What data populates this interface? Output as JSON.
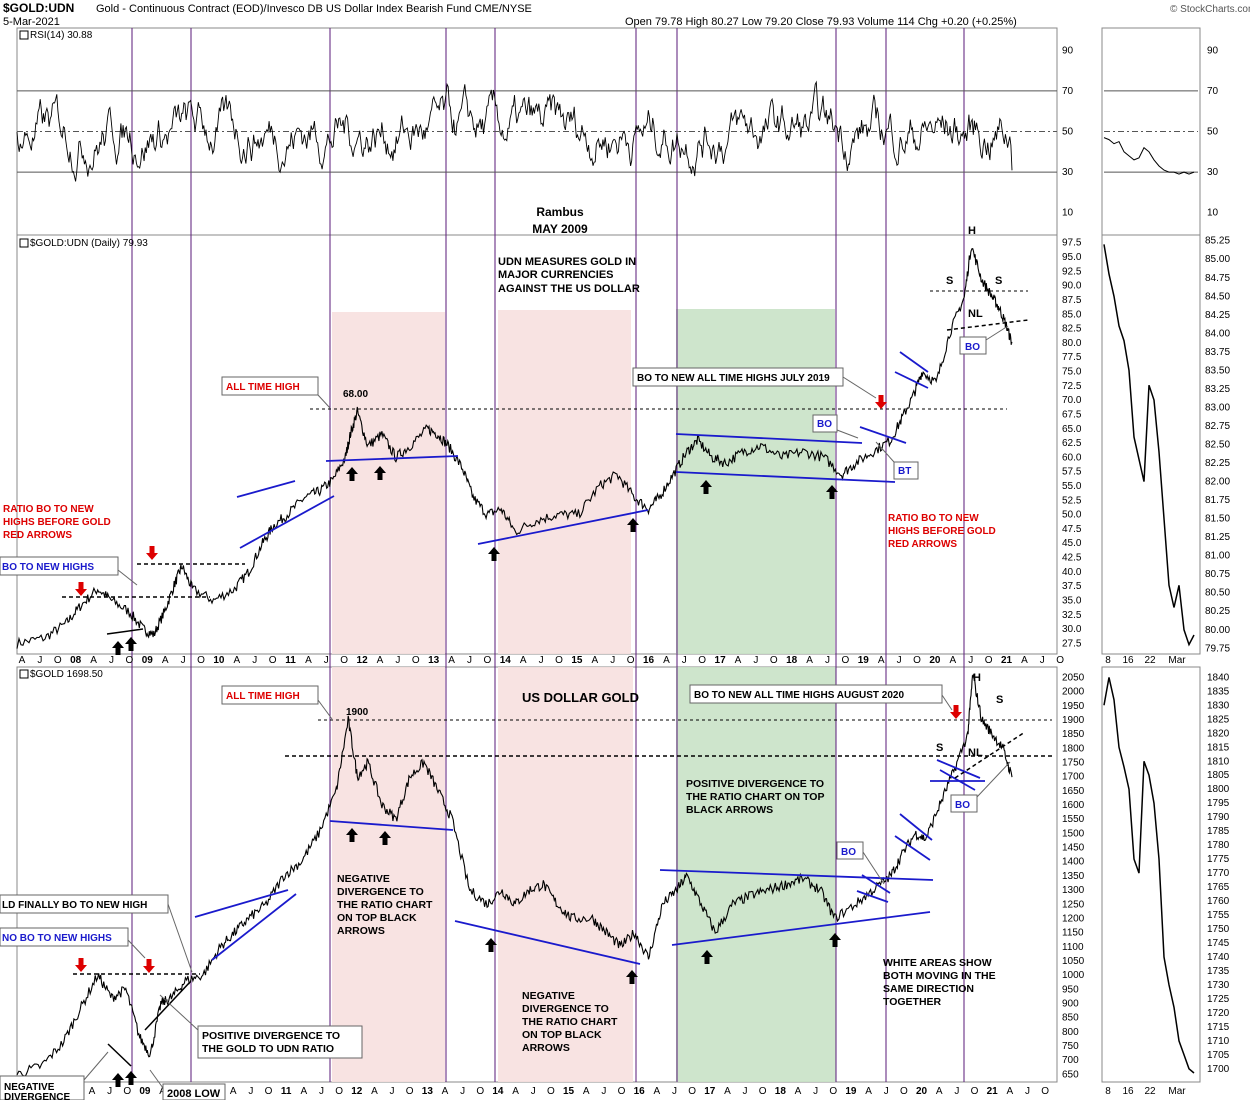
{
  "header": {
    "symbol": "$GOLD:UDN",
    "description": "Gold - Continuous Contract (EOD)/Invesco DB US Dollar Index Bearish Fund  CME/NYSE",
    "date": "5-Mar-2021",
    "quote": "Open 79.78  High 80.27  Low 79.20  Close 79.93  Volume 114  Chg +0.20 (+0.25%)",
    "watermark": "© StockCharts.com"
  },
  "colors": {
    "pink_zone": "#f7e0df",
    "green_zone": "#c9e2c6",
    "trendline": "#1a1acc",
    "cycle_line": "#5a1a7a",
    "red_text": "#dd0000",
    "blue_text": "#1a1acc"
  },
  "credits": {
    "author": "Rambus",
    "date": "MAY 2009"
  },
  "chart_data": [
    {
      "type": "line",
      "name": "rsi",
      "legend": "RSI(14) 30.88",
      "ylim": [
        0,
        100
      ],
      "yticks": [
        10,
        30,
        50,
        70,
        90
      ],
      "reference_lines": [
        30,
        50,
        70
      ]
    },
    {
      "type": "line",
      "name": "ratio",
      "legend": "$GOLD:UDN (Daily) 79.93",
      "ylim": [
        26,
        98.5
      ],
      "yticks": [
        27.5,
        30.0,
        32.5,
        35.0,
        37.5,
        40.0,
        42.5,
        45.0,
        47.5,
        50.0,
        52.5,
        55.0,
        57.5,
        60.0,
        62.5,
        65.0,
        67.5,
        70.0,
        72.5,
        75.0,
        77.5,
        80.0,
        82.5,
        85.0,
        87.5,
        90.0,
        92.5,
        95.0,
        97.5
      ],
      "x_start": 2007.0,
      "x_end": 2021.18,
      "points": [
        [
          2007.0,
          27.5
        ],
        [
          2007.4,
          28.5
        ],
        [
          2007.7,
          31
        ],
        [
          2007.9,
          34
        ],
        [
          2008.15,
          37
        ],
        [
          2008.35,
          35
        ],
        [
          2008.6,
          33
        ],
        [
          2008.8,
          30
        ],
        [
          2008.95,
          29
        ],
        [
          2009.1,
          33
        ],
        [
          2009.25,
          38
        ],
        [
          2009.35,
          41
        ],
        [
          2009.5,
          37
        ],
        [
          2009.8,
          35
        ],
        [
          2010.1,
          37
        ],
        [
          2010.3,
          40
        ],
        [
          2010.5,
          45
        ],
        [
          2010.65,
          48
        ],
        [
          2010.85,
          50
        ],
        [
          2011.1,
          53
        ],
        [
          2011.3,
          54
        ],
        [
          2011.5,
          56
        ],
        [
          2011.68,
          60
        ],
        [
          2011.75,
          64
        ],
        [
          2011.85,
          68
        ],
        [
          2012.0,
          62
        ],
        [
          2012.2,
          64
        ],
        [
          2012.4,
          60
        ],
        [
          2012.6,
          62
        ],
        [
          2012.85,
          65
        ],
        [
          2013.0,
          64
        ],
        [
          2013.15,
          62
        ],
        [
          2013.35,
          58
        ],
        [
          2013.5,
          53
        ],
        [
          2013.7,
          50
        ],
        [
          2013.9,
          51
        ],
        [
          2014.1,
          47
        ],
        [
          2014.4,
          49
        ],
        [
          2014.7,
          50
        ],
        [
          2015.0,
          50
        ],
        [
          2015.3,
          55
        ],
        [
          2015.55,
          57
        ],
        [
          2015.8,
          53
        ],
        [
          2016.0,
          51
        ],
        [
          2016.15,
          53
        ],
        [
          2016.35,
          57
        ],
        [
          2016.55,
          61
        ],
        [
          2016.7,
          63
        ],
        [
          2016.9,
          60
        ],
        [
          2017.1,
          59
        ],
        [
          2017.35,
          61
        ],
        [
          2017.6,
          62
        ],
        [
          2017.9,
          60
        ],
        [
          2018.2,
          61
        ],
        [
          2018.5,
          60
        ],
        [
          2018.75,
          57
        ],
        [
          2018.95,
          59
        ],
        [
          2019.2,
          61
        ],
        [
          2019.45,
          63
        ],
        [
          2019.62,
          67
        ],
        [
          2019.78,
          71
        ],
        [
          2019.9,
          75
        ],
        [
          2020.1,
          73
        ],
        [
          2020.3,
          82
        ],
        [
          2020.5,
          88
        ],
        [
          2020.6,
          97
        ],
        [
          2020.75,
          91
        ],
        [
          2020.9,
          88
        ],
        [
          2021.0,
          86
        ],
        [
          2021.1,
          83
        ],
        [
          2021.18,
          79.93
        ]
      ],
      "reference_levels": [
        {
          "value": 68.0,
          "label": "68.00"
        }
      ],
      "right_panel": {
        "ylim": [
          79.7,
          85.3
        ],
        "yticks": [
          79.75,
          80.0,
          80.25,
          80.5,
          80.75,
          81.0,
          81.25,
          81.5,
          81.75,
          82.0,
          82.25,
          82.5,
          82.75,
          83.0,
          83.25,
          83.5,
          83.75,
          84.0,
          84.25,
          84.5,
          84.75,
          85.0,
          85.25
        ],
        "values": [
          85.2,
          84.8,
          84.5,
          84.1,
          83.9,
          83.5,
          82.6,
          82.3,
          82.0,
          83.3,
          83.1,
          82.4,
          81.5,
          80.6,
          80.3,
          80.6,
          80.0,
          79.8,
          79.93
        ]
      }
    },
    {
      "type": "line",
      "name": "gold",
      "legend": "$GOLD 1698.50",
      "ylim": [
        630,
        2080
      ],
      "yticks": [
        650,
        700,
        750,
        800,
        850,
        900,
        950,
        1000,
        1050,
        1100,
        1150,
        1200,
        1250,
        1300,
        1350,
        1400,
        1450,
        1500,
        1550,
        1600,
        1650,
        1700,
        1750,
        1800,
        1850,
        1900,
        1950,
        2000,
        2050
      ],
      "x_start": 2007.0,
      "x_end": 2021.18,
      "points": [
        [
          2007.0,
          650
        ],
        [
          2007.35,
          680
        ],
        [
          2007.65,
          760
        ],
        [
          2007.9,
          880
        ],
        [
          2008.15,
          1000
        ],
        [
          2008.35,
          920
        ],
        [
          2008.55,
          950
        ],
        [
          2008.75,
          780
        ],
        [
          2008.9,
          720
        ],
        [
          2009.05,
          900
        ],
        [
          2009.2,
          920
        ],
        [
          2009.4,
          980
        ],
        [
          2009.65,
          1000
        ],
        [
          2009.9,
          1100
        ],
        [
          2010.1,
          1150
        ],
        [
          2010.3,
          1200
        ],
        [
          2010.55,
          1250
        ],
        [
          2010.8,
          1350
        ],
        [
          2011.05,
          1400
        ],
        [
          2011.3,
          1500
        ],
        [
          2011.55,
          1650
        ],
        [
          2011.72,
          1900
        ],
        [
          2011.85,
          1700
        ],
        [
          2012.0,
          1750
        ],
        [
          2012.2,
          1600
        ],
        [
          2012.4,
          1550
        ],
        [
          2012.6,
          1700
        ],
        [
          2012.8,
          1750
        ],
        [
          2013.0,
          1650
        ],
        [
          2013.2,
          1550
        ],
        [
          2013.45,
          1300
        ],
        [
          2013.7,
          1250
        ],
        [
          2013.9,
          1300
        ],
        [
          2014.1,
          1250
        ],
        [
          2014.3,
          1300
        ],
        [
          2014.5,
          1320
        ],
        [
          2014.7,
          1250
        ],
        [
          2014.9,
          1200
        ],
        [
          2015.2,
          1200
        ],
        [
          2015.4,
          1150
        ],
        [
          2015.6,
          1100
        ],
        [
          2015.8,
          1150
        ],
        [
          2016.0,
          1060
        ],
        [
          2016.2,
          1250
        ],
        [
          2016.4,
          1300
        ],
        [
          2016.55,
          1350
        ],
        [
          2016.75,
          1250
        ],
        [
          2016.95,
          1150
        ],
        [
          2017.2,
          1250
        ],
        [
          2017.45,
          1280
        ],
        [
          2017.7,
          1300
        ],
        [
          2017.95,
          1320
        ],
        [
          2018.2,
          1340
        ],
        [
          2018.45,
          1300
        ],
        [
          2018.65,
          1200
        ],
        [
          2018.95,
          1250
        ],
        [
          2019.2,
          1300
        ],
        [
          2019.45,
          1350
        ],
        [
          2019.6,
          1420
        ],
        [
          2019.8,
          1500
        ],
        [
          2019.95,
          1480
        ],
        [
          2020.15,
          1600
        ],
        [
          2020.35,
          1720
        ],
        [
          2020.55,
          1850
        ],
        [
          2020.62,
          2060
        ],
        [
          2020.75,
          1900
        ],
        [
          2020.9,
          1850
        ],
        [
          2021.05,
          1800
        ],
        [
          2021.18,
          1698.5
        ]
      ],
      "reference_levels": [
        {
          "value": 1900,
          "label": "1900"
        }
      ],
      "right_panel": {
        "ylim": [
          1696,
          1843
        ],
        "yticks": [
          1700,
          1705,
          1710,
          1715,
          1720,
          1725,
          1730,
          1735,
          1740,
          1745,
          1750,
          1755,
          1760,
          1765,
          1770,
          1775,
          1780,
          1785,
          1790,
          1795,
          1800,
          1805,
          1810,
          1815,
          1820,
          1825,
          1830,
          1835,
          1840
        ],
        "values": [
          1830,
          1840,
          1832,
          1815,
          1808,
          1800,
          1775,
          1770,
          1810,
          1805,
          1795,
          1775,
          1740,
          1730,
          1722,
          1710,
          1705,
          1700,
          1698.5
        ]
      }
    }
  ],
  "x_axis": {
    "labels_top": [
      "A",
      "J",
      "O",
      "08",
      "A",
      "J",
      "O",
      "09",
      "A",
      "J",
      "O",
      "10",
      "A",
      "J",
      "O",
      "11",
      "A",
      "J",
      "O",
      "12",
      "A",
      "J",
      "O",
      "13",
      "A",
      "J",
      "O",
      "14",
      "A",
      "J",
      "O",
      "15",
      "A",
      "J",
      "O",
      "16",
      "A",
      "J",
      "O",
      "17",
      "A",
      "J",
      "O",
      "18",
      "A",
      "J",
      "O",
      "19",
      "A",
      "J",
      "O",
      "20",
      "A",
      "J",
      "O",
      "21",
      "A",
      "J",
      "O"
    ],
    "labels_bottom": [
      "A",
      "J",
      "O",
      "09",
      "A",
      "J",
      "O",
      "10",
      "A",
      "J",
      "O",
      "11",
      "A",
      "J",
      "O",
      "12",
      "A",
      "J",
      "O",
      "13",
      "A",
      "J",
      "O",
      "14",
      "A",
      "J",
      "O",
      "15",
      "A",
      "J",
      "O",
      "16",
      "A",
      "J",
      "O",
      "17",
      "A",
      "J",
      "O",
      "18",
      "A",
      "J",
      "O",
      "19",
      "A",
      "J",
      "O",
      "20",
      "A",
      "J",
      "O",
      "21",
      "A",
      "J",
      "O"
    ],
    "right_labels": [
      "8",
      "16",
      "22",
      "Mar"
    ]
  },
  "annotations": {
    "ratio": {
      "all_time_high": "ALL TIME HIGH",
      "udn_measures": [
        "UDN MEASURES GOLD IN",
        "MAJOR CURRENCIES",
        "AGAINST THE US DOLLAR"
      ],
      "bo_july_2019": "BO TO NEW ALL TIME HIGHS JULY 2019",
      "bo": "BO",
      "bt": "BT",
      "bo_nl": "BO",
      "h": "H",
      "s_left": "S",
      "s_right": "S",
      "nl": "NL",
      "ratio_bo_left": [
        "RATIO BO TO NEW",
        "HIGHS BEFORE GOLD",
        "RED ARROWS"
      ],
      "ratio_bo_right": [
        "RATIO BO TO NEW",
        "HIGHS BEFORE GOLD",
        "RED ARROWS"
      ],
      "bo_new_highs": "BO TO NEW HIGHS"
    },
    "gold": {
      "all_time_high": "ALL TIME HIGH",
      "us_dollar_gold": "US DOLLAR GOLD",
      "bo_aug_2020": "BO TO NEW ALL TIME HIGHS AUGUST 2020",
      "h": "H",
      "s_left": "S",
      "s_right": "S",
      "nl": "NL",
      "bo_nl": "BO",
      "bo_wedge": "BO",
      "positive_divergence_mid": [
        "POSITIVE DIVERGENCE TO",
        "THE RATIO CHART ON TOP",
        "BLACK ARROWS"
      ],
      "negative_divergence_2012": [
        "NEGATIVE",
        "DIVERGENCE TO",
        "THE RATIO CHART",
        "ON TOP BLACK",
        "ARROWS"
      ],
      "negative_divergence_2015": [
        "NEGATIVE",
        "DIVERGENCE TO",
        "THE RATIO CHART",
        "ON TOP BLACK",
        "ARROWS"
      ],
      "white_areas": [
        "WHITE AREAS SHOW",
        "BOTH MOVING IN THE",
        "SAME DIRECTION",
        "TOGETHER"
      ],
      "gold_finally_bo": "LD FINALLY BO TO NEW HIGH",
      "no_bo": "NO BO TO NEW HIGHS",
      "positive_divergence_udn": [
        "POSITIVE DIVERGENCE TO",
        "THE GOLD TO UDN RATIO"
      ],
      "low_2008": "2008 LOW",
      "negative_divergence_left": [
        "NEGATIVE",
        "DIVERGENCE"
      ]
    }
  }
}
